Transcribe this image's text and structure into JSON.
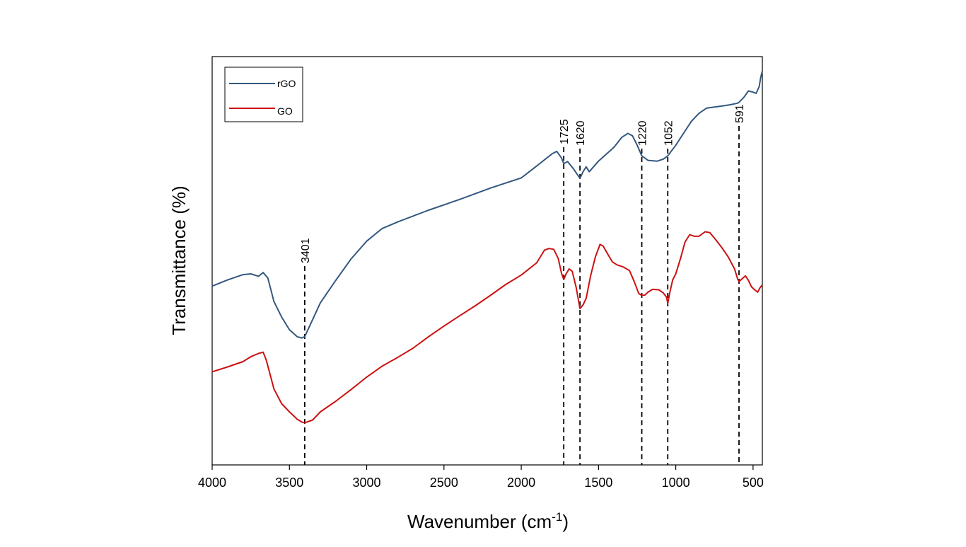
{
  "chart_data": {
    "type": "line",
    "title": "",
    "xlabel": "Wavenumber (cm",
    "xlabel_sup": "-1",
    "xlabel_close": ")",
    "ylabel": "Transmittance (%)",
    "x_reversed": true,
    "xlim": [
      4000,
      440
    ],
    "ylim": [
      0,
      100
    ],
    "y_ticks_shown": false,
    "x_ticks": [
      "4000",
      "3500",
      "3000",
      "2500",
      "2000",
      "1500",
      "1000",
      "500"
    ],
    "grid": false,
    "legend_position": "top-left",
    "peaks": [
      "3401",
      "1725",
      "1620",
      "1220",
      "1052",
      "591"
    ],
    "series": [
      {
        "name": "rGO",
        "color": "#33587f",
        "points": [
          [
            4000,
            43.8
          ],
          [
            3900,
            45.3
          ],
          [
            3800,
            46.6
          ],
          [
            3750,
            46.8
          ],
          [
            3700,
            46.2
          ],
          [
            3670,
            47.1
          ],
          [
            3640,
            45.8
          ],
          [
            3600,
            40.0
          ],
          [
            3550,
            36.2
          ],
          [
            3500,
            33.1
          ],
          [
            3450,
            31.4
          ],
          [
            3420,
            31.1
          ],
          [
            3401,
            31.4
          ],
          [
            3350,
            35.6
          ],
          [
            3300,
            39.7
          ],
          [
            3200,
            45.2
          ],
          [
            3100,
            50.5
          ],
          [
            3000,
            54.8
          ],
          [
            2900,
            57.9
          ],
          [
            2800,
            59.5
          ],
          [
            2600,
            62.4
          ],
          [
            2400,
            65.0
          ],
          [
            2200,
            67.8
          ],
          [
            2000,
            70.3
          ],
          [
            1900,
            73.2
          ],
          [
            1800,
            76.2
          ],
          [
            1770,
            76.8
          ],
          [
            1740,
            75.2
          ],
          [
            1725,
            73.8
          ],
          [
            1700,
            74.3
          ],
          [
            1660,
            72.4
          ],
          [
            1620,
            70.2
          ],
          [
            1600,
            71.8
          ],
          [
            1580,
            73.0
          ],
          [
            1560,
            71.8
          ],
          [
            1500,
            74.4
          ],
          [
            1450,
            76.1
          ],
          [
            1400,
            77.8
          ],
          [
            1350,
            80.2
          ],
          [
            1310,
            81.2
          ],
          [
            1280,
            80.6
          ],
          [
            1250,
            78.3
          ],
          [
            1220,
            75.7
          ],
          [
            1180,
            74.6
          ],
          [
            1120,
            74.4
          ],
          [
            1080,
            74.9
          ],
          [
            1052,
            75.7
          ],
          [
            1000,
            78.3
          ],
          [
            950,
            81.2
          ],
          [
            900,
            84.1
          ],
          [
            850,
            86.1
          ],
          [
            800,
            87.4
          ],
          [
            700,
            87.9
          ],
          [
            650,
            88.2
          ],
          [
            600,
            88.6
          ],
          [
            591,
            88.8
          ],
          [
            560,
            90.0
          ],
          [
            530,
            91.6
          ],
          [
            500,
            91.3
          ],
          [
            480,
            91.0
          ],
          [
            460,
            92.7
          ],
          [
            450,
            95.0
          ],
          [
            440,
            96.5
          ]
        ]
      },
      {
        "name": "GO",
        "color": "#cc1111",
        "points": [
          [
            4000,
            22.8
          ],
          [
            3900,
            24.0
          ],
          [
            3800,
            25.3
          ],
          [
            3750,
            26.5
          ],
          [
            3700,
            27.3
          ],
          [
            3670,
            27.6
          ],
          [
            3650,
            25.7
          ],
          [
            3600,
            18.6
          ],
          [
            3550,
            15.0
          ],
          [
            3500,
            13.0
          ],
          [
            3450,
            11.2
          ],
          [
            3420,
            10.5
          ],
          [
            3401,
            10.3
          ],
          [
            3350,
            11.0
          ],
          [
            3300,
            13.0
          ],
          [
            3200,
            15.6
          ],
          [
            3100,
            18.5
          ],
          [
            3000,
            21.5
          ],
          [
            2900,
            24.2
          ],
          [
            2800,
            26.3
          ],
          [
            2700,
            28.6
          ],
          [
            2600,
            31.4
          ],
          [
            2500,
            34.0
          ],
          [
            2400,
            36.5
          ],
          [
            2300,
            38.9
          ],
          [
            2200,
            41.5
          ],
          [
            2100,
            44.2
          ],
          [
            2000,
            46.5
          ],
          [
            1900,
            49.5
          ],
          [
            1850,
            52.6
          ],
          [
            1820,
            53.0
          ],
          [
            1790,
            52.8
          ],
          [
            1760,
            50.5
          ],
          [
            1740,
            47.0
          ],
          [
            1725,
            45.4
          ],
          [
            1710,
            46.8
          ],
          [
            1690,
            48.0
          ],
          [
            1670,
            47.4
          ],
          [
            1645,
            43.5
          ],
          [
            1620,
            38.3
          ],
          [
            1600,
            39.2
          ],
          [
            1580,
            40.8
          ],
          [
            1550,
            46.5
          ],
          [
            1520,
            51.0
          ],
          [
            1490,
            54.0
          ],
          [
            1470,
            53.6
          ],
          [
            1440,
            51.6
          ],
          [
            1410,
            49.7
          ],
          [
            1380,
            49.0
          ],
          [
            1340,
            48.5
          ],
          [
            1300,
            47.6
          ],
          [
            1270,
            45.0
          ],
          [
            1240,
            42.0
          ],
          [
            1220,
            41.5
          ],
          [
            1200,
            41.6
          ],
          [
            1180,
            42.3
          ],
          [
            1150,
            43.0
          ],
          [
            1110,
            42.9
          ],
          [
            1080,
            42.1
          ],
          [
            1060,
            41.1
          ],
          [
            1052,
            39.6
          ],
          [
            1040,
            42.0
          ],
          [
            1020,
            45.3
          ],
          [
            1000,
            46.8
          ],
          [
            970,
            50.5
          ],
          [
            940,
            54.6
          ],
          [
            910,
            56.4
          ],
          [
            880,
            56.0
          ],
          [
            850,
            56.0
          ],
          [
            810,
            57.1
          ],
          [
            780,
            56.9
          ],
          [
            740,
            55.1
          ],
          [
            700,
            53.1
          ],
          [
            660,
            50.9
          ],
          [
            620,
            48.0
          ],
          [
            600,
            45.6
          ],
          [
            591,
            44.9
          ],
          [
            570,
            45.6
          ],
          [
            550,
            46.3
          ],
          [
            530,
            45.2
          ],
          [
            510,
            43.6
          ],
          [
            490,
            42.9
          ],
          [
            470,
            42.3
          ],
          [
            455,
            43.4
          ],
          [
            440,
            44.1
          ]
        ]
      }
    ]
  }
}
